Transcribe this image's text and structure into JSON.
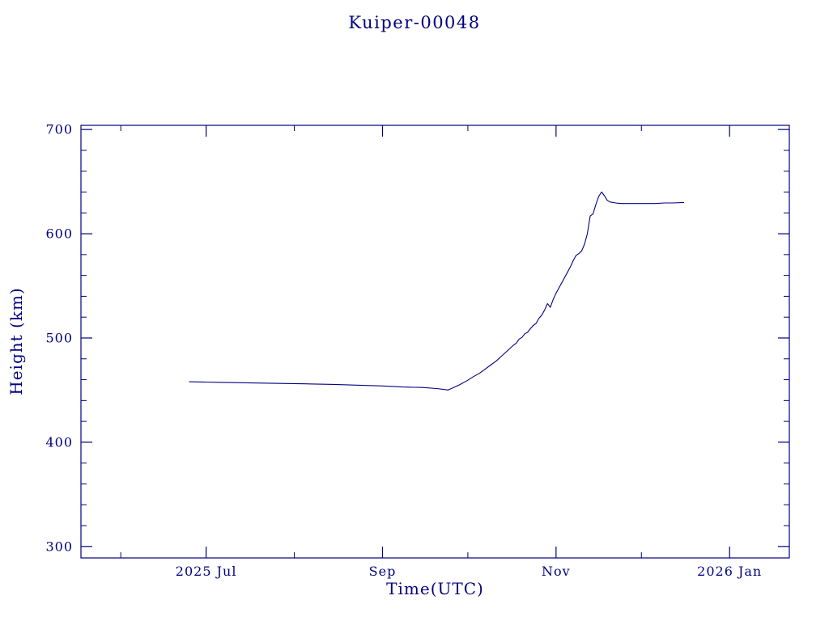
{
  "chart_data": {
    "type": "line",
    "title": "Kuiper-00048",
    "xlabel": "Time(UTC)",
    "ylabel": "Height (km)",
    "line_color": "#000080",
    "axis_color": "#000080",
    "text_color": "#000080",
    "background": "#ffffff",
    "ylim": [
      289,
      704
    ],
    "xlim": [
      "2025-05-18",
      "2026-01-22"
    ],
    "y_major_ticks": [
      300,
      400,
      500,
      600,
      700
    ],
    "y_minor_step": 20,
    "x_major_ticks": [
      {
        "date": "2025-07-01",
        "label": "2025 Jul"
      },
      {
        "date": "2025-09-01",
        "label": "Sep"
      },
      {
        "date": "2025-11-01",
        "label": "Nov"
      },
      {
        "date": "2026-01-01",
        "label": "2026 Jan"
      }
    ],
    "x_minor_ticks": [
      "2025-06-01",
      "2025-08-01",
      "2025-10-01",
      "2025-12-01"
    ],
    "grid": false,
    "legend": "none",
    "series": [
      {
        "name": "height_km",
        "points": [
          [
            "2025-06-25",
            458
          ],
          [
            "2025-07-05",
            457.5
          ],
          [
            "2025-07-15",
            457
          ],
          [
            "2025-07-25",
            456.5
          ],
          [
            "2025-08-05",
            456
          ],
          [
            "2025-08-15",
            455.5
          ],
          [
            "2025-08-25",
            454.5
          ],
          [
            "2025-09-01",
            454
          ],
          [
            "2025-09-08",
            453
          ],
          [
            "2025-09-15",
            452.5
          ],
          [
            "2025-09-20",
            451.5
          ],
          [
            "2025-09-23",
            450.5
          ],
          [
            "2025-09-24",
            450
          ],
          [
            "2025-09-26",
            452.5
          ],
          [
            "2025-09-28",
            455
          ],
          [
            "2025-10-01",
            459.5
          ],
          [
            "2025-10-03",
            463
          ],
          [
            "2025-10-05",
            466
          ],
          [
            "2025-10-07",
            470
          ],
          [
            "2025-10-09",
            474
          ],
          [
            "2025-10-11",
            478
          ],
          [
            "2025-10-13",
            483
          ],
          [
            "2025-10-15",
            488
          ],
          [
            "2025-10-17",
            493
          ],
          [
            "2025-10-18",
            495
          ],
          [
            "2025-10-19",
            499
          ],
          [
            "2025-10-20",
            500.5
          ],
          [
            "2025-10-21",
            504
          ],
          [
            "2025-10-22",
            505.5
          ],
          [
            "2025-10-23",
            509
          ],
          [
            "2025-10-24",
            512
          ],
          [
            "2025-10-25",
            514
          ],
          [
            "2025-10-26",
            519
          ],
          [
            "2025-10-27",
            522
          ],
          [
            "2025-10-28",
            527
          ],
          [
            "2025-10-29",
            533
          ],
          [
            "2025-10-30",
            529.5
          ],
          [
            "2025-10-31",
            537
          ],
          [
            "2025-11-01",
            543
          ],
          [
            "2025-11-02",
            548
          ],
          [
            "2025-11-03",
            553
          ],
          [
            "2025-11-04",
            558
          ],
          [
            "2025-11-05",
            563
          ],
          [
            "2025-11-06",
            568
          ],
          [
            "2025-11-07",
            574
          ],
          [
            "2025-11-08",
            579
          ],
          [
            "2025-11-09",
            581
          ],
          [
            "2025-11-10",
            583.5
          ],
          [
            "2025-11-11",
            590
          ],
          [
            "2025-11-12",
            600
          ],
          [
            "2025-11-13",
            617
          ],
          [
            "2025-11-14",
            619
          ],
          [
            "2025-11-15",
            628
          ],
          [
            "2025-11-16",
            636
          ],
          [
            "2025-11-17",
            640
          ],
          [
            "2025-11-18",
            636.5
          ],
          [
            "2025-11-19",
            632
          ],
          [
            "2025-11-20",
            630.5
          ],
          [
            "2025-11-22",
            629.5
          ],
          [
            "2025-11-24",
            629
          ],
          [
            "2025-11-27",
            629
          ],
          [
            "2025-11-30",
            629
          ],
          [
            "2025-12-03",
            629
          ],
          [
            "2025-12-06",
            629
          ],
          [
            "2025-12-09",
            629.5
          ],
          [
            "2025-12-12",
            629.5
          ],
          [
            "2025-12-16",
            630
          ]
        ]
      }
    ]
  }
}
